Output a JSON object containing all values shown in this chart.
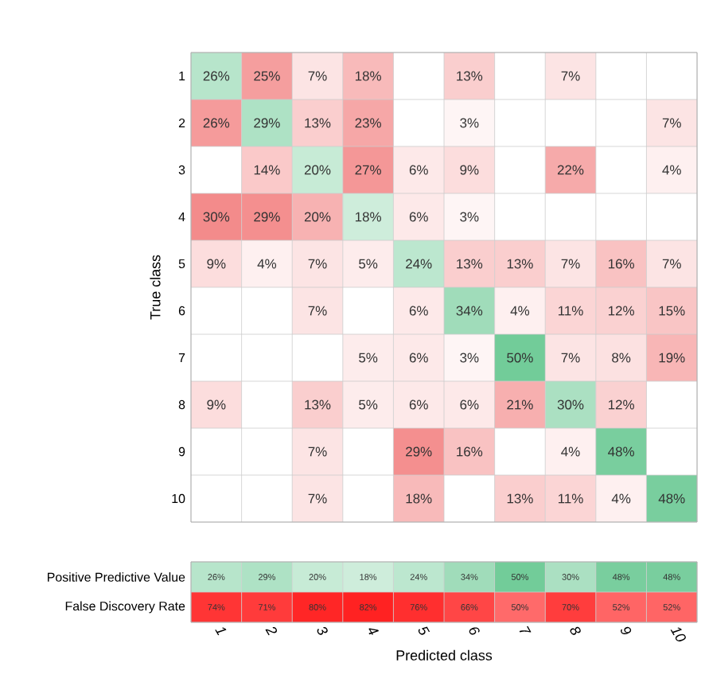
{
  "chart_data": [
    {
      "type": "heatmap",
      "ylabel": "True class",
      "tick_labels": "y",
      "categories": [
        "1",
        "2",
        "3",
        "4",
        "5",
        "6",
        "7",
        "8",
        "9",
        "10"
      ],
      "y_categories": [
        "1",
        "2",
        "3",
        "4",
        "5",
        "6",
        "7",
        "8",
        "9",
        "10"
      ],
      "cells": [
        [
          26,
          25,
          7,
          18,
          null,
          13,
          null,
          7,
          null,
          null
        ],
        [
          26,
          29,
          13,
          23,
          null,
          3,
          null,
          null,
          null,
          7
        ],
        [
          null,
          14,
          20,
          27,
          6,
          9,
          null,
          22,
          null,
          4
        ],
        [
          30,
          29,
          20,
          18,
          6,
          3,
          null,
          null,
          null,
          null
        ],
        [
          9,
          4,
          7,
          5,
          24,
          13,
          13,
          7,
          16,
          7
        ],
        [
          null,
          null,
          7,
          null,
          6,
          34,
          4,
          11,
          12,
          15
        ],
        [
          null,
          null,
          null,
          5,
          6,
          3,
          50,
          7,
          8,
          19
        ],
        [
          9,
          null,
          13,
          5,
          6,
          6,
          21,
          30,
          12,
          null
        ],
        [
          null,
          null,
          7,
          null,
          29,
          16,
          null,
          4,
          48,
          null
        ],
        [
          null,
          null,
          7,
          null,
          18,
          null,
          13,
          11,
          4,
          48
        ]
      ],
      "cell_labels": [
        [
          "26%",
          "25%",
          "7%",
          "18%",
          null,
          "13%",
          null,
          "7%",
          null,
          null
        ],
        [
          "26%",
          "29%",
          "13%",
          "23%",
          null,
          "3%",
          null,
          null,
          null,
          "7%"
        ],
        [
          null,
          "14%",
          "20%",
          "27%",
          "6%",
          "9%",
          null,
          "22%",
          null,
          "4%"
        ],
        [
          "30%",
          "29%",
          "20%",
          "18%",
          "6%",
          "3%",
          null,
          null,
          null,
          null
        ],
        [
          "9%",
          "4%",
          "7%",
          "5%",
          "24%",
          "13%",
          "13%",
          "7%",
          "16%",
          "7%"
        ],
        [
          null,
          null,
          "7%",
          null,
          "6%",
          "34%",
          "4%",
          "11%",
          "12%",
          "15%"
        ],
        [
          null,
          null,
          null,
          "5%",
          "6%",
          "3%",
          "50%",
          "7%",
          "8%",
          "19%"
        ],
        [
          "9%",
          null,
          "13%",
          "5%",
          "6%",
          "6%",
          "21%",
          "30%",
          "12%",
          null
        ],
        [
          null,
          null,
          "7%",
          null,
          "29%",
          "16%",
          null,
          "4%",
          "48%",
          null
        ],
        [
          null,
          null,
          "7%",
          null,
          "18%",
          null,
          "13%",
          "11%",
          "4%",
          "48%"
        ]
      ]
    },
    {
      "type": "heatmap",
      "xlabel": "Predicted class",
      "categories": [
        "1",
        "2",
        "3",
        "4",
        "5",
        "6",
        "7",
        "8",
        "9",
        "10"
      ],
      "y_categories": [
        "Positive Predictive Value",
        "False Discovery Rate"
      ],
      "cells": [
        [
          26,
          29,
          20,
          18,
          24,
          34,
          50,
          30,
          48,
          48
        ],
        [
          74,
          71,
          80,
          82,
          76,
          66,
          50,
          70,
          52,
          52
        ]
      ],
      "cell_labels": [
        [
          "26%",
          "29%",
          "20%",
          "18%",
          "24%",
          "34%",
          "50%",
          "30%",
          "48%",
          "48%"
        ],
        [
          "74%",
          "71%",
          "80%",
          "82%",
          "76%",
          "66%",
          "50%",
          "70%",
          "52%",
          "52%"
        ]
      ]
    }
  ]
}
